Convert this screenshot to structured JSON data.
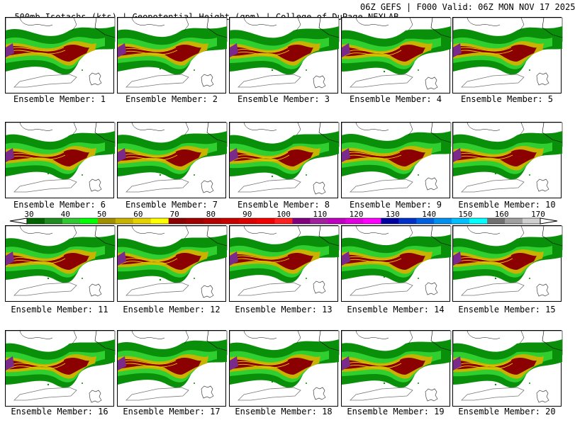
{
  "header": {
    "title": "500mb Isotachs (kts) | Geopotential Height (gpm) | College of DuPage NEXLAB",
    "run_info": "06Z GEFS | F000 Valid: 06Z MON NOV 17 2025"
  },
  "members": [
    {
      "label": "Ensemble Member: 1"
    },
    {
      "label": "Ensemble Member: 2"
    },
    {
      "label": "Ensemble Member: 3"
    },
    {
      "label": "Ensemble Member: 4"
    },
    {
      "label": "Ensemble Member: 5"
    },
    {
      "label": "Ensemble Member: 6"
    },
    {
      "label": "Ensemble Member: 7"
    },
    {
      "label": "Ensemble Member: 8"
    },
    {
      "label": "Ensemble Member: 9"
    },
    {
      "label": "Ensemble Member: 10"
    },
    {
      "label": "Ensemble Member: 11"
    },
    {
      "label": "Ensemble Member: 12"
    },
    {
      "label": "Ensemble Member: 13"
    },
    {
      "label": "Ensemble Member: 14"
    },
    {
      "label": "Ensemble Member: 15"
    },
    {
      "label": "Ensemble Member: 16"
    },
    {
      "label": "Ensemble Member: 17"
    },
    {
      "label": "Ensemble Member: 18"
    },
    {
      "label": "Ensemble Member: 19"
    },
    {
      "label": "Ensemble Member: 20"
    }
  ],
  "colorbar": {
    "unit": "kts",
    "tick_labels": [
      "30",
      "40",
      "50",
      "60",
      "70",
      "80",
      "90",
      "100",
      "110",
      "120",
      "130",
      "140",
      "150",
      "160",
      "170"
    ],
    "colors": [
      "#006400",
      "#1e8c1e",
      "#32c832",
      "#00ff00",
      "#a09000",
      "#c8b400",
      "#e6d200",
      "#ffff00",
      "#8b0000",
      "#a00000",
      "#b40000",
      "#c80000",
      "#dc0000",
      "#f00000",
      "#ff2020",
      "#800080",
      "#a020a0",
      "#c000c0",
      "#e000e0",
      "#ff00ff",
      "#0000a0",
      "#0030c8",
      "#0060e0",
      "#0090f0",
      "#00c0ff",
      "#00ffff",
      "#707070",
      "#a0a0a0",
      "#d0d0d0"
    ]
  }
}
